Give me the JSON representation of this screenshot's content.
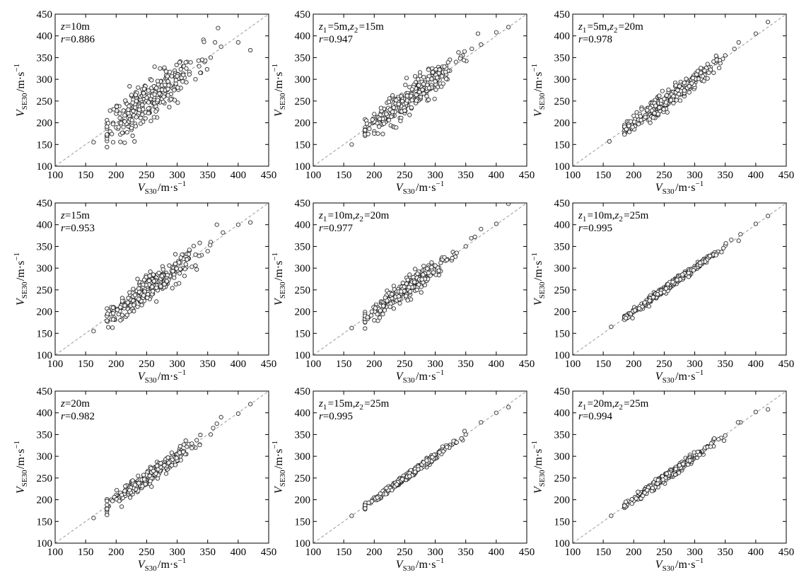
{
  "figure": {
    "xlabel": {
      "main": "V",
      "sub": "S30",
      "unit": "/m·s",
      "sup": "−1"
    },
    "ylabel": {
      "main": "V",
      "sub": "SE30",
      "unit": "/m·s",
      "sup": "−1"
    },
    "xticks": [
      100,
      150,
      200,
      250,
      300,
      350,
      400,
      450
    ],
    "yticks": [
      100,
      150,
      200,
      250,
      300,
      350,
      400,
      450
    ]
  },
  "chart_data": [
    {
      "type": "scatter",
      "xlim": [
        100,
        450
      ],
      "ylim": [
        100,
        450
      ],
      "reference_line": "y=x",
      "r": 0.886,
      "annotation": {
        "line1": [
          [
            "z",
            "",
            true
          ],
          [
            "=10m",
            "",
            false
          ]
        ],
        "line2": [
          [
            "r",
            "",
            true
          ],
          [
            "=0.886",
            "",
            false
          ]
        ]
      },
      "seed": 11,
      "spread": 24,
      "points": [
        [
          163,
          155
        ],
        [
          185,
          170
        ],
        [
          190,
          180
        ],
        [
          195,
          200
        ],
        [
          205,
          238
        ],
        [
          225,
          262
        ],
        [
          250,
          250
        ],
        [
          270,
          270
        ],
        [
          285,
          295
        ],
        [
          300,
          280
        ],
        [
          310,
          330
        ],
        [
          330,
          300
        ],
        [
          345,
          340
        ],
        [
          355,
          350
        ],
        [
          362,
          385
        ],
        [
          367,
          418
        ],
        [
          372,
          375
        ],
        [
          400,
          385
        ],
        [
          420,
          367
        ]
      ]
    },
    {
      "type": "scatter",
      "xlim": [
        100,
        450
      ],
      "ylim": [
        100,
        450
      ],
      "reference_line": "y=x",
      "r": 0.947,
      "annotation": {
        "line1": [
          [
            "z",
            "1",
            true
          ],
          [
            "=5m,",
            "",
            false
          ],
          [
            "z",
            "2",
            true
          ],
          [
            "=15m",
            "",
            false
          ]
        ],
        "line2": [
          [
            "r",
            "",
            true
          ],
          [
            "=0.947",
            "",
            false
          ]
        ]
      },
      "seed": 23,
      "spread": 16,
      "points": [
        [
          163,
          150
        ],
        [
          185,
          175
        ],
        [
          200,
          180
        ],
        [
          220,
          215
        ],
        [
          250,
          250
        ],
        [
          270,
          260
        ],
        [
          300,
          310
        ],
        [
          320,
          300
        ],
        [
          345,
          355
        ],
        [
          360,
          370
        ],
        [
          370,
          405
        ],
        [
          375,
          380
        ],
        [
          400,
          408
        ],
        [
          420,
          420
        ]
      ]
    },
    {
      "type": "scatter",
      "xlim": [
        100,
        450
      ],
      "ylim": [
        100,
        450
      ],
      "reference_line": "y=x",
      "r": 0.978,
      "annotation": {
        "line1": [
          [
            "z",
            "1",
            true
          ],
          [
            "=5m,",
            "",
            false
          ],
          [
            "z",
            "2",
            true
          ],
          [
            "=20m",
            "",
            false
          ]
        ],
        "line2": [
          [
            "r",
            "",
            true
          ],
          [
            "=0.978",
            "",
            false
          ]
        ]
      },
      "seed": 37,
      "spread": 11,
      "points": [
        [
          160,
          157
        ],
        [
          185,
          175
        ],
        [
          200,
          200
        ],
        [
          230,
          225
        ],
        [
          260,
          255
        ],
        [
          290,
          290
        ],
        [
          320,
          320
        ],
        [
          350,
          355
        ],
        [
          365,
          370
        ],
        [
          372,
          385
        ],
        [
          400,
          405
        ],
        [
          420,
          432
        ]
      ]
    },
    {
      "type": "scatter",
      "xlim": [
        100,
        450
      ],
      "ylim": [
        100,
        450
      ],
      "reference_line": "y=x",
      "r": 0.953,
      "annotation": {
        "line1": [
          [
            "z",
            "",
            true
          ],
          [
            "=15m",
            "",
            false
          ]
        ],
        "line2": [
          [
            "r",
            "",
            true
          ],
          [
            "=0.953",
            "",
            false
          ]
        ]
      },
      "seed": 41,
      "spread": 15,
      "points": [
        [
          163,
          155
        ],
        [
          185,
          178
        ],
        [
          210,
          220
        ],
        [
          240,
          245
        ],
        [
          260,
          265
        ],
        [
          290,
          280
        ],
        [
          310,
          300
        ],
        [
          340,
          330
        ],
        [
          355,
          360
        ],
        [
          365,
          400
        ],
        [
          375,
          382
        ],
        [
          400,
          400
        ],
        [
          420,
          405
        ]
      ]
    },
    {
      "type": "scatter",
      "xlim": [
        100,
        450
      ],
      "ylim": [
        100,
        450
      ],
      "reference_line": "y=x",
      "r": 0.977,
      "annotation": {
        "line1": [
          [
            "z",
            "1",
            true
          ],
          [
            "=10m,",
            "",
            false
          ],
          [
            "z",
            "2",
            true
          ],
          [
            "=20m",
            "",
            false
          ]
        ],
        "line2": [
          [
            "r",
            "",
            true
          ],
          [
            "=0.977",
            "",
            false
          ]
        ]
      },
      "seed": 53,
      "spread": 11,
      "points": [
        [
          163,
          162
        ],
        [
          185,
          175
        ],
        [
          200,
          200
        ],
        [
          230,
          230
        ],
        [
          260,
          255
        ],
        [
          290,
          290
        ],
        [
          320,
          320
        ],
        [
          350,
          350
        ],
        [
          365,
          372
        ],
        [
          375,
          390
        ],
        [
          400,
          402
        ],
        [
          420,
          448
        ]
      ]
    },
    {
      "type": "scatter",
      "xlim": [
        100,
        450
      ],
      "ylim": [
        100,
        450
      ],
      "reference_line": "y=x",
      "r": 0.995,
      "annotation": {
        "line1": [
          [
            "z",
            "1",
            true
          ],
          [
            "=10m,",
            "",
            false
          ],
          [
            "z",
            "2",
            true
          ],
          [
            "=25m",
            "",
            false
          ]
        ],
        "line2": [
          [
            "r",
            "",
            true
          ],
          [
            "=0.995",
            "",
            false
          ]
        ]
      },
      "seed": 67,
      "spread": 4,
      "points": [
        [
          163,
          165
        ],
        [
          185,
          185
        ],
        [
          250,
          250
        ],
        [
          300,
          300
        ],
        [
          350,
          352
        ],
        [
          375,
          378
        ],
        [
          400,
          402
        ],
        [
          420,
          420
        ]
      ]
    },
    {
      "type": "scatter",
      "xlim": [
        100,
        450
      ],
      "ylim": [
        100,
        450
      ],
      "reference_line": "y=x",
      "r": 0.982,
      "annotation": {
        "line1": [
          [
            "z",
            "",
            true
          ],
          [
            "=20m",
            "",
            false
          ]
        ],
        "line2": [
          [
            "r",
            "",
            true
          ],
          [
            "=0.982",
            "",
            false
          ]
        ]
      },
      "seed": 71,
      "spread": 9,
      "points": [
        [
          163,
          158
        ],
        [
          185,
          180
        ],
        [
          210,
          205
        ],
        [
          240,
          240
        ],
        [
          270,
          265
        ],
        [
          300,
          300
        ],
        [
          330,
          320
        ],
        [
          355,
          350
        ],
        [
          365,
          375
        ],
        [
          372,
          390
        ],
        [
          400,
          398
        ],
        [
          420,
          420
        ]
      ]
    },
    {
      "type": "scatter",
      "xlim": [
        100,
        450
      ],
      "ylim": [
        100,
        450
      ],
      "reference_line": "y=x",
      "r": 0.995,
      "annotation": {
        "line1": [
          [
            "z",
            "1",
            true
          ],
          [
            "=15m,",
            "",
            false
          ],
          [
            "z",
            "2",
            true
          ],
          [
            "=25m",
            "",
            false
          ]
        ],
        "line2": [
          [
            "r",
            "",
            true
          ],
          [
            "=0.995",
            "",
            false
          ]
        ]
      },
      "seed": 83,
      "spread": 4,
      "points": [
        [
          163,
          163
        ],
        [
          185,
          185
        ],
        [
          250,
          250
        ],
        [
          300,
          300
        ],
        [
          350,
          350
        ],
        [
          375,
          378
        ],
        [
          400,
          400
        ],
        [
          420,
          413
        ]
      ]
    },
    {
      "type": "scatter",
      "xlim": [
        100,
        450
      ],
      "ylim": [
        100,
        450
      ],
      "reference_line": "y=x",
      "r": 0.994,
      "annotation": {
        "line1": [
          [
            "z",
            "1",
            true
          ],
          [
            "=20m,",
            "",
            false
          ],
          [
            "z",
            "2",
            true
          ],
          [
            "=25m",
            "",
            false
          ]
        ],
        "line2": [
          [
            "r",
            "",
            true
          ],
          [
            "=0.994",
            "",
            false
          ]
        ]
      },
      "seed": 97,
      "spread": 5,
      "points": [
        [
          163,
          163
        ],
        [
          185,
          183
        ],
        [
          250,
          250
        ],
        [
          300,
          300
        ],
        [
          350,
          348
        ],
        [
          375,
          378
        ],
        [
          400,
          402
        ],
        [
          420,
          408
        ]
      ]
    }
  ]
}
